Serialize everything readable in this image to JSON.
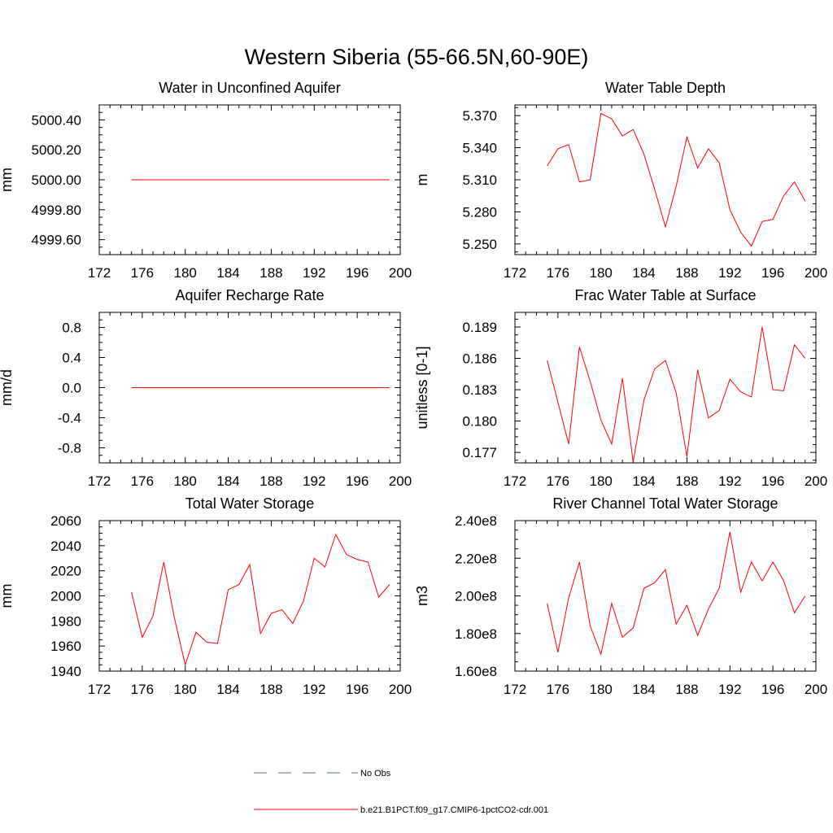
{
  "title": "Western Siberia (55-66.5N,60-90E)",
  "colors": {
    "model": "#ff0000",
    "obs": "#5566aa"
  },
  "legend": [
    {
      "label": "No Obs",
      "style": "dashed",
      "color": "#5566aa"
    },
    {
      "label": "b.e21.B1PCT.f09_g17.CMIP6-1pctCO2-cdr.001",
      "style": "solid",
      "color": "#ff0000"
    }
  ],
  "chart_data": [
    {
      "type": "line",
      "title": "Water in Unconfined Aquifer",
      "xlabel": "",
      "ylabel": "mm",
      "xlim": [
        172,
        200
      ],
      "ylim": [
        4999.5,
        5000.5
      ],
      "xticks": [
        "172",
        "176",
        "180",
        "184",
        "188",
        "192",
        "196",
        "200"
      ],
      "yticks": [
        {
          "value": 4999.6,
          "label": "4999.60"
        },
        {
          "value": 4999.8,
          "label": "4999.80"
        },
        {
          "value": 5000.0,
          "label": "5000.00"
        },
        {
          "value": 5000.2,
          "label": "5000.20"
        },
        {
          "value": 5000.4,
          "label": "5000.40"
        }
      ],
      "x": [
        175,
        176,
        177,
        178,
        179,
        180,
        181,
        182,
        183,
        184,
        185,
        186,
        187,
        188,
        189,
        190,
        191,
        192,
        193,
        194,
        195,
        196,
        197,
        198,
        199
      ],
      "series": [
        {
          "values": [
            5000,
            5000,
            5000,
            5000,
            5000,
            5000,
            5000,
            5000,
            5000,
            5000,
            5000,
            5000,
            5000,
            5000,
            5000,
            5000,
            5000,
            5000,
            5000,
            5000,
            5000,
            5000,
            5000,
            5000,
            5000
          ]
        }
      ]
    },
    {
      "type": "line",
      "title": "Water Table Depth",
      "xlabel": "",
      "ylabel": "m",
      "xlim": [
        172,
        200
      ],
      "ylim": [
        5.24,
        5.38
      ],
      "xticks": [
        "172",
        "176",
        "180",
        "184",
        "188",
        "192",
        "196",
        "200"
      ],
      "yticks": [
        {
          "value": 5.25,
          "label": "5.250"
        },
        {
          "value": 5.28,
          "label": "5.280"
        },
        {
          "value": 5.31,
          "label": "5.310"
        },
        {
          "value": 5.34,
          "label": "5.340"
        },
        {
          "value": 5.37,
          "label": "5.370"
        }
      ],
      "x": [
        175,
        176,
        177,
        178,
        179,
        180,
        181,
        182,
        183,
        184,
        185,
        186,
        187,
        188,
        189,
        190,
        191,
        192,
        193,
        194,
        195,
        196,
        197,
        198,
        199
      ],
      "series": [
        {
          "values": [
            5.323,
            5.339,
            5.343,
            5.308,
            5.31,
            5.372,
            5.367,
            5.351,
            5.357,
            5.334,
            5.301,
            5.266,
            5.304,
            5.35,
            5.321,
            5.339,
            5.326,
            5.282,
            5.261,
            5.248,
            5.271,
            5.273,
            5.295,
            5.308,
            5.29
          ]
        }
      ]
    },
    {
      "type": "line",
      "title": "Aquifer Recharge Rate",
      "xlabel": "",
      "ylabel": "mm/d",
      "xlim": [
        172,
        200
      ],
      "ylim": [
        -1.0,
        1.0
      ],
      "xticks": [
        "172",
        "176",
        "180",
        "184",
        "188",
        "192",
        "196",
        "200"
      ],
      "yticks": [
        {
          "value": -0.8,
          "label": "-0.8"
        },
        {
          "value": -0.4,
          "label": "-0.4"
        },
        {
          "value": 0.0,
          "label": "0.0"
        },
        {
          "value": 0.4,
          "label": "0.4"
        },
        {
          "value": 0.8,
          "label": "0.8"
        }
      ],
      "x": [
        175,
        176,
        177,
        178,
        179,
        180,
        181,
        182,
        183,
        184,
        185,
        186,
        187,
        188,
        189,
        190,
        191,
        192,
        193,
        194,
        195,
        196,
        197,
        198,
        199
      ],
      "series": [
        {
          "values": [
            0,
            0,
            0,
            0,
            0,
            0,
            0,
            0,
            0,
            0,
            0,
            0,
            0,
            0,
            0,
            0,
            0,
            0,
            0,
            0,
            0,
            0,
            0,
            0,
            0
          ]
        }
      ]
    },
    {
      "type": "line",
      "title": "Frac Water Table at Surface",
      "xlabel": "",
      "ylabel": "unitless [0-1]",
      "xlim": [
        172,
        200
      ],
      "ylim": [
        0.176,
        0.1904
      ],
      "xticks": [
        "172",
        "176",
        "180",
        "184",
        "188",
        "192",
        "196",
        "200"
      ],
      "yticks": [
        {
          "value": 0.177,
          "label": "0.177"
        },
        {
          "value": 0.18,
          "label": "0.180"
        },
        {
          "value": 0.183,
          "label": "0.183"
        },
        {
          "value": 0.186,
          "label": "0.186"
        },
        {
          "value": 0.189,
          "label": "0.189"
        }
      ],
      "x": [
        175,
        176,
        177,
        178,
        179,
        180,
        181,
        182,
        183,
        184,
        185,
        186,
        187,
        188,
        189,
        190,
        191,
        192,
        193,
        194,
        195,
        196,
        197,
        198,
        199
      ],
      "series": [
        {
          "values": [
            0.1858,
            0.1818,
            0.1778,
            0.1871,
            0.1838,
            0.1801,
            0.1778,
            0.1841,
            0.1761,
            0.182,
            0.185,
            0.1858,
            0.1827,
            0.1766,
            0.1849,
            0.1803,
            0.181,
            0.184,
            0.1828,
            0.1823,
            0.189,
            0.183,
            0.1829,
            0.1873,
            0.186
          ]
        }
      ]
    },
    {
      "type": "line",
      "title": "Total Water Storage",
      "xlabel": "",
      "ylabel": "mm",
      "xlim": [
        172,
        200
      ],
      "ylim": [
        1940,
        2060
      ],
      "xticks": [
        "172",
        "176",
        "180",
        "184",
        "188",
        "192",
        "196",
        "200"
      ],
      "yticks": [
        {
          "value": 1940,
          "label": "1940"
        },
        {
          "value": 1960,
          "label": "1960"
        },
        {
          "value": 1980,
          "label": "1980"
        },
        {
          "value": 2000,
          "label": "2000"
        },
        {
          "value": 2020,
          "label": "2020"
        },
        {
          "value": 2040,
          "label": "2040"
        },
        {
          "value": 2060,
          "label": "2060"
        }
      ],
      "x": [
        175,
        176,
        177,
        178,
        179,
        180,
        181,
        182,
        183,
        184,
        185,
        186,
        187,
        188,
        189,
        190,
        191,
        192,
        193,
        194,
        195,
        196,
        197,
        198,
        199
      ],
      "series": [
        {
          "values": [
            2003,
            1967,
            1984,
            2027,
            1982,
            1945,
            1971,
            1963,
            1962,
            2005,
            2009,
            2025,
            1970,
            1986,
            1989,
            1978,
            1996,
            2030,
            2023,
            2049,
            2033,
            2029,
            2027,
            1999,
            2009
          ]
        }
      ]
    },
    {
      "type": "line",
      "title": "River Channel Total Water Storage",
      "xlabel": "",
      "ylabel": "m3",
      "xlim": [
        172,
        200
      ],
      "ylim": [
        160000000,
        240000000
      ],
      "xticks": [
        "172",
        "176",
        "180",
        "184",
        "188",
        "192",
        "196",
        "200"
      ],
      "yticks": [
        {
          "value": 160000000,
          "label": "1.60e8"
        },
        {
          "value": 180000000,
          "label": "1.80e8"
        },
        {
          "value": 200000000,
          "label": "2.00e8"
        },
        {
          "value": 220000000,
          "label": "2.20e8"
        },
        {
          "value": 240000000,
          "label": "2.40e8"
        }
      ],
      "x": [
        175,
        176,
        177,
        178,
        179,
        180,
        181,
        182,
        183,
        184,
        185,
        186,
        187,
        188,
        189,
        190,
        191,
        192,
        193,
        194,
        195,
        196,
        197,
        198,
        199
      ],
      "series": [
        {
          "values": [
            196000000,
            170000000,
            199000000,
            218000000,
            184000000,
            169000000,
            196000000,
            178000000,
            183000000,
            204000000,
            207000000,
            214000000,
            185000000,
            195000000,
            179000000,
            193000000,
            204000000,
            234000000,
            202000000,
            218000000,
            208000000,
            218000000,
            208000000,
            191000000,
            200000000
          ]
        }
      ]
    }
  ]
}
